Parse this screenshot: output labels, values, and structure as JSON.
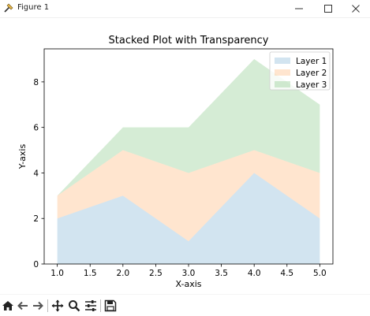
{
  "window": {
    "title": "Figure 1"
  },
  "toolbar": {
    "tools": [
      "home-icon",
      "back-icon",
      "forward-icon",
      "pan-icon",
      "zoom-icon",
      "configure-icon",
      "save-icon"
    ]
  },
  "chart_data": {
    "type": "area",
    "stacked": true,
    "title": "Stacked Plot with Transparency",
    "xlabel": "X-axis",
    "ylabel": "Y-axis",
    "x": [
      1,
      2,
      3,
      4,
      5
    ],
    "xlim": [
      0.8,
      5.2
    ],
    "ylim": [
      0,
      9.45
    ],
    "xticks": [
      1.0,
      1.5,
      2.0,
      2.5,
      3.0,
      3.5,
      4.0,
      4.5,
      5.0
    ],
    "xtick_labels": [
      "1.0",
      "1.5",
      "2.0",
      "2.5",
      "3.0",
      "3.5",
      "4.0",
      "4.5",
      "5.0"
    ],
    "yticks": [
      0,
      2,
      4,
      6,
      8
    ],
    "ytick_labels": [
      "0",
      "2",
      "4",
      "6",
      "8"
    ],
    "grid": false,
    "alpha": 0.2,
    "legend_position": "top-right",
    "series": [
      {
        "name": "Layer 1",
        "values": [
          2,
          3,
          1,
          4,
          2
        ],
        "color": "#1f77b4"
      },
      {
        "name": "Layer 2",
        "values": [
          1,
          2,
          3,
          1,
          2
        ],
        "color": "#ff7f0e"
      },
      {
        "name": "Layer 3",
        "values": [
          0,
          1,
          2,
          4,
          3
        ],
        "color": "#2ca02c"
      }
    ]
  }
}
